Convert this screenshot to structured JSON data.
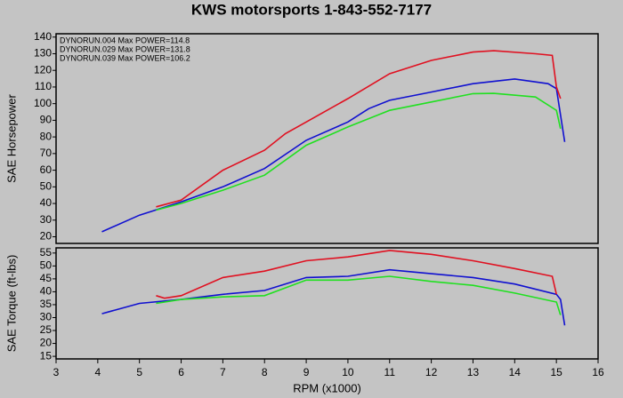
{
  "chart_data": [
    {
      "type": "line",
      "title": "KWS motorsports 1-843-552-7177",
      "ylabel": "SAE Horsepower",
      "xlim": [
        3,
        16
      ],
      "ylim": [
        16,
        142
      ],
      "yticks": [
        20,
        30,
        40,
        50,
        60,
        70,
        80,
        90,
        100,
        110,
        120,
        130,
        140
      ],
      "legend": "upper left",
      "series": [
        {
          "name": "DYNORUN.004 Max POWER=114.8",
          "color": "#1010d0",
          "x": [
            4.1,
            5,
            6,
            7,
            8,
            9,
            10,
            10.5,
            11,
            12,
            13,
            14,
            14.8,
            15,
            15.2
          ],
          "values": [
            23,
            33,
            41,
            50,
            61,
            78,
            89,
            97,
            102,
            107,
            112,
            114.8,
            112,
            109,
            77
          ]
        },
        {
          "name": "DYNORUN.029 Max POWER=131.8",
          "color": "#e01020",
          "x": [
            5.4,
            6,
            7,
            8,
            8.5,
            9,
            10,
            11,
            12,
            13,
            13.5,
            14.5,
            14.9,
            15,
            15.1
          ],
          "values": [
            38,
            42,
            60,
            72,
            82,
            89,
            103,
            118,
            126,
            131,
            131.8,
            130,
            129,
            110,
            103
          ]
        },
        {
          "name": "DYNORUN.039 Max POWER=106.2",
          "color": "#20e020",
          "x": [
            5.4,
            6,
            7,
            8,
            9,
            10,
            11,
            12,
            13,
            13.5,
            14.5,
            15,
            15.1
          ],
          "values": [
            36,
            40,
            48,
            57,
            75,
            86,
            96,
            101,
            106,
            106.2,
            104,
            96,
            85
          ]
        }
      ]
    },
    {
      "type": "line",
      "ylabel": "SAE Torque (ft-lbs)",
      "xlabel": "RPM (x1000)",
      "xlim": [
        3,
        16
      ],
      "xticks": [
        3,
        4,
        5,
        6,
        7,
        8,
        9,
        10,
        11,
        12,
        13,
        14,
        15,
        16
      ],
      "ylim": [
        14,
        57
      ],
      "yticks": [
        15,
        20,
        25,
        30,
        35,
        40,
        45,
        50,
        55
      ],
      "series": [
        {
          "color": "#1010d0",
          "x": [
            4.1,
            5,
            6,
            7,
            8,
            9,
            10,
            11,
            12,
            13,
            14,
            15,
            15.1,
            15.2
          ],
          "values": [
            31.5,
            35.5,
            37,
            39,
            40.5,
            45.5,
            46,
            48.5,
            47,
            45.5,
            43,
            39,
            37,
            27
          ]
        },
        {
          "color": "#e01020",
          "x": [
            5.4,
            5.6,
            6,
            7,
            8,
            9,
            10,
            11,
            12,
            13,
            14,
            14.9,
            15
          ],
          "values": [
            38.5,
            37.5,
            38.5,
            45.5,
            48,
            52,
            53.5,
            56,
            54.5,
            52,
            49,
            46,
            39
          ]
        },
        {
          "color": "#20e020",
          "x": [
            5.4,
            6,
            7,
            8,
            9,
            10,
            11,
            12,
            13,
            14,
            15,
            15.1
          ],
          "values": [
            35.5,
            37,
            38,
            38.5,
            44.5,
            44.5,
            46,
            44,
            42.5,
            39.5,
            36,
            31
          ]
        }
      ]
    }
  ]
}
